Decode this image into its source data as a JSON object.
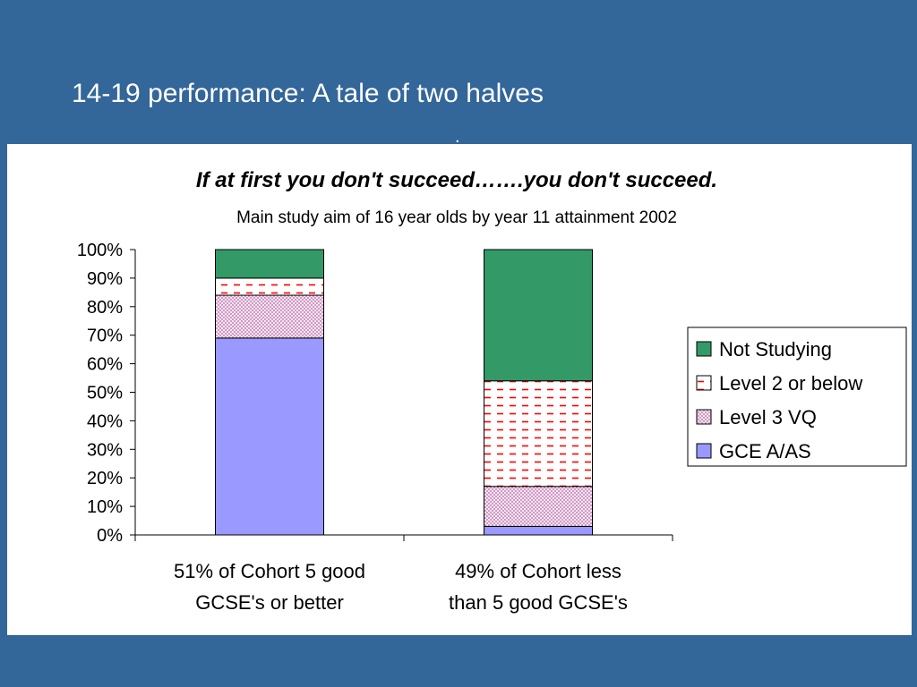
{
  "slide": {
    "title": "14-19 performance: A tale of two halves",
    "stray_mark": "."
  },
  "colors": {
    "background": "#336699",
    "gce": "#9999ff",
    "level3": "#cc99cc",
    "level2": "#ff0000",
    "not_studying": "#339966"
  },
  "chart_data": {
    "type": "bar",
    "stacked": true,
    "title": "If at first you don't succeed…….you don't succeed.",
    "subtitle": "Main study aim of 16 year olds by year 11 attainment 2002",
    "categories": [
      [
        "51% of Cohort 5 good",
        "GCSE's or better"
      ],
      [
        "49% of Cohort less",
        "than 5 good GCSE's"
      ]
    ],
    "ylim": [
      0,
      100
    ],
    "yticks": [
      "0%",
      "10%",
      "20%",
      "30%",
      "40%",
      "50%",
      "60%",
      "70%",
      "80%",
      "90%",
      "100%"
    ],
    "legend_position": "right",
    "series": [
      {
        "name": "GCE A/AS",
        "values": [
          69,
          3
        ],
        "color": "#9999ff",
        "pattern": "solid"
      },
      {
        "name": "Level 3 VQ",
        "values": [
          15,
          14
        ],
        "color": "#cc99cc",
        "pattern": "crosshatch"
      },
      {
        "name": "Level 2 or below",
        "values": [
          6,
          37
        ],
        "color": "#ff0000",
        "pattern": "dashes"
      },
      {
        "name": "Not Studying",
        "values": [
          10,
          46
        ],
        "color": "#339966",
        "pattern": "solid"
      }
    ],
    "legend_order": [
      3,
      2,
      1,
      0
    ]
  }
}
